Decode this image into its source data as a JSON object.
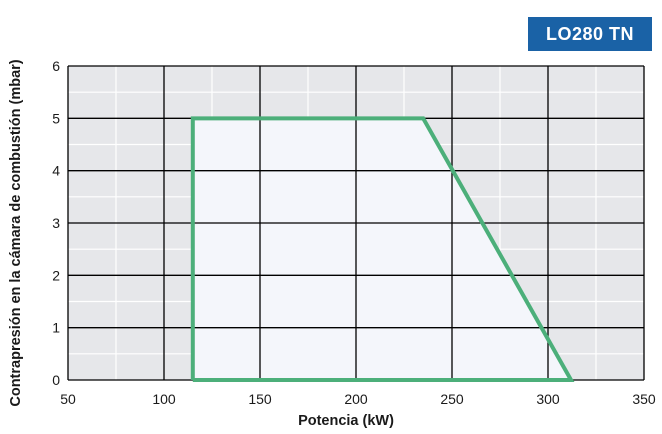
{
  "badge": {
    "label": "LO280 TN",
    "color": "#1a62a6"
  },
  "chart_data": {
    "type": "area",
    "title": "",
    "xlabel": "Potencia (kW)",
    "ylabel": "Contrapresión en la cámara de combustión (mbar)",
    "xlim": [
      50,
      350
    ],
    "ylim": [
      0,
      6
    ],
    "x_ticks": [
      50,
      100,
      150,
      200,
      250,
      300,
      350
    ],
    "y_ticks": [
      0,
      1,
      2,
      3,
      4,
      5,
      6
    ],
    "grid": true,
    "legend": "none",
    "series": [
      {
        "x": [
          115,
          115,
          235,
          312,
          115
        ],
        "y": [
          0,
          5,
          5,
          0,
          0
        ],
        "line_color": "#4caf7a",
        "fill_color": "#f4f6fb"
      }
    ],
    "plot_background": "#e6e7ea",
    "grid_color": "#000000"
  }
}
